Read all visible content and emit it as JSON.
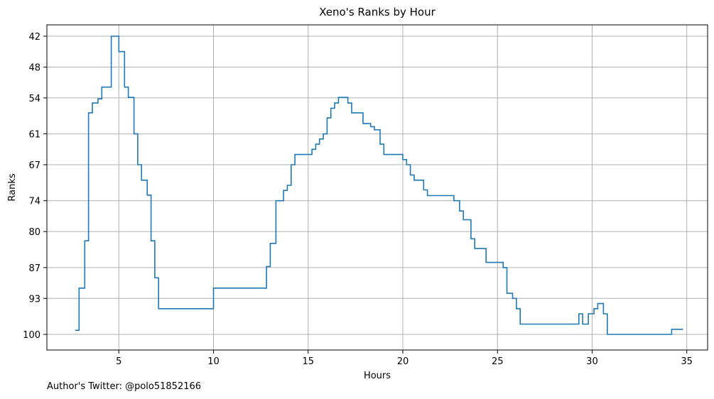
{
  "chart_data": {
    "type": "line",
    "title": "Xeno's Ranks by Hour",
    "xlabel": "Hours",
    "ylabel": "Ranks",
    "xlim": [
      1.2,
      36.1
    ],
    "ylim": [
      42,
      100
    ],
    "y_inverted": true,
    "grid": true,
    "step": true,
    "x_ticks": [
      5,
      10,
      15,
      20,
      25,
      30,
      35
    ],
    "y_ticks": [
      42,
      48,
      54,
      61,
      67,
      74,
      80,
      87,
      93,
      100
    ],
    "line_color": "#1f77b4",
    "series": [
      {
        "x": [
          2.7,
          2.9,
          3.2,
          3.4,
          3.6,
          3.9,
          4.1,
          4.6,
          4.8,
          5.0,
          5.3,
          5.5,
          5.8,
          6.0,
          6.2,
          6.5,
          6.7,
          6.9,
          7.1,
          9.9,
          10.0,
          12.6,
          12.8,
          13.0,
          13.3,
          13.5,
          13.7,
          13.9,
          14.1,
          14.3,
          15.0,
          15.2,
          15.4,
          15.6,
          15.8,
          16.0,
          16.2,
          16.4,
          16.6,
          16.8,
          17.1,
          17.3,
          17.5,
          17.9,
          18.3,
          18.5,
          18.8,
          19.0,
          19.8,
          20.0,
          20.2,
          20.4,
          20.6,
          21.1,
          21.3,
          22.4,
          22.7,
          23.0,
          23.2,
          23.6,
          23.8,
          24.2,
          24.4,
          25.0,
          25.3,
          25.5,
          25.8,
          26.0,
          26.2,
          29.1,
          29.3,
          29.5,
          29.8,
          30.1,
          30.3,
          30.6,
          30.8,
          34.0,
          34.2,
          34.8
        ],
        "y": [
          99.2,
          91.0,
          81.8,
          56.9,
          55.0,
          54.2,
          51.9,
          42.0,
          42.0,
          45.0,
          51.9,
          53.9,
          61.0,
          67.0,
          70.0,
          72.9,
          81.8,
          89.0,
          95.0,
          95.0,
          91.0,
          91.0,
          86.8,
          82.3,
          74.0,
          74.0,
          72.0,
          71.0,
          67.0,
          65.0,
          65.0,
          64.0,
          63.0,
          62.0,
          61.0,
          57.9,
          56.0,
          55.0,
          53.9,
          53.9,
          55.0,
          56.9,
          56.9,
          59.0,
          59.6,
          60.2,
          63.0,
          65.0,
          65.0,
          66.0,
          67.0,
          69.0,
          70.0,
          71.9,
          73.0,
          73.0,
          74.0,
          76.0,
          77.7,
          81.4,
          83.3,
          83.3,
          86.0,
          86.0,
          87.0,
          92.0,
          93.0,
          95.0,
          98.0,
          98.0,
          96.0,
          98.0,
          96.0,
          95.0,
          94.0,
          96.0,
          100.0,
          100.0,
          99.0,
          99.0
        ]
      }
    ]
  },
  "footer": {
    "credit": "Author's Twitter: @polo51852166"
  }
}
